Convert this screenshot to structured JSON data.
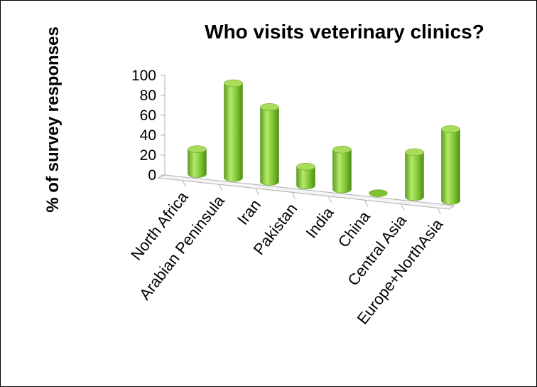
{
  "chart_data": {
    "type": "bar",
    "title": "Who visits veterinary clinics?",
    "ylabel": "% of survey responses",
    "xlabel": "",
    "categories": [
      "North Africa",
      "Arabian Peninsula",
      "Iran",
      "Pakistan",
      "India",
      "China",
      "Central Asia",
      "Europe+NorthAsia"
    ],
    "values": [
      25,
      95,
      75,
      19,
      40,
      0,
      45,
      72
    ],
    "ylim": [
      0,
      100
    ],
    "yticks": [
      "0",
      "20",
      "40",
      "60",
      "80",
      "100"
    ],
    "grid": false,
    "legend": "none",
    "style": "3d-cylinder",
    "colors": {
      "bar_light": "#a6e05a",
      "bar_mid": "#7cc232",
      "bar_dark": "#4e8c16",
      "bar_top": "#a9dc5c",
      "axis": "#b0b0b0"
    }
  }
}
